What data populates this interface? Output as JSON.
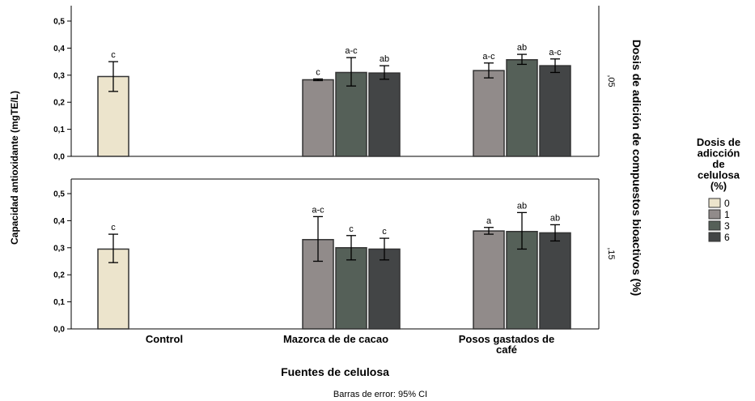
{
  "chart_data": {
    "type": "bar",
    "ylabel": "Capacidad antioxidante (mgTE/L)",
    "xlabel": "Fuentes de celulosa",
    "right_label": "Dosis de adición de compuestos bioactivos (%)",
    "footnote": "Barras de error: 95% CI",
    "categories": [
      "Control",
      "Mazorca de  de cacao",
      "Posos gastados de café"
    ],
    "yticks": [
      "0,0",
      "0,1",
      "0,2",
      "0,3",
      "0,4",
      "0,5"
    ],
    "ylim": [
      0,
      0.55
    ],
    "legend": {
      "title_lines": [
        "Dosis de",
        "adicción",
        "de",
        "celulosa",
        "(%)"
      ],
      "items": [
        {
          "label": "0",
          "color": "#ece4cc"
        },
        {
          "label": "1",
          "color": "#918b8a"
        },
        {
          "label": "3",
          "color": "#556058"
        },
        {
          "label": "6",
          "color": "#434546"
        }
      ]
    },
    "panels": [
      {
        "label": ",05",
        "groups": [
          {
            "category": "Control",
            "bars": [
              {
                "dose": "0",
                "value": 0.295,
                "low": 0.24,
                "high": 0.35,
                "letter": "c"
              }
            ]
          },
          {
            "category": "Mazorca de  de cacao",
            "bars": [
              {
                "dose": "1",
                "value": 0.283,
                "low": 0.28,
                "high": 0.286,
                "letter": "c"
              },
              {
                "dose": "3",
                "value": 0.31,
                "low": 0.26,
                "high": 0.365,
                "letter": "a-c"
              },
              {
                "dose": "6",
                "value": 0.308,
                "low": 0.285,
                "high": 0.335,
                "letter": "ab"
              }
            ]
          },
          {
            "category": "Posos gastados de café",
            "bars": [
              {
                "dose": "1",
                "value": 0.317,
                "low": 0.29,
                "high": 0.345,
                "letter": "a-c"
              },
              {
                "dose": "3",
                "value": 0.357,
                "low": 0.34,
                "high": 0.377,
                "letter": "ab"
              },
              {
                "dose": "6",
                "value": 0.335,
                "low": 0.31,
                "high": 0.36,
                "letter": "a-c"
              }
            ]
          }
        ]
      },
      {
        "label": ",15",
        "groups": [
          {
            "category": "Control",
            "bars": [
              {
                "dose": "0",
                "value": 0.295,
                "low": 0.245,
                "high": 0.35,
                "letter": "c"
              }
            ]
          },
          {
            "category": "Mazorca de  de cacao",
            "bars": [
              {
                "dose": "1",
                "value": 0.33,
                "low": 0.25,
                "high": 0.415,
                "letter": "a-c"
              },
              {
                "dose": "3",
                "value": 0.3,
                "low": 0.255,
                "high": 0.345,
                "letter": "c"
              },
              {
                "dose": "6",
                "value": 0.295,
                "low": 0.255,
                "high": 0.335,
                "letter": "c"
              }
            ]
          },
          {
            "category": "Posos gastados de café",
            "bars": [
              {
                "dose": "1",
                "value": 0.362,
                "low": 0.35,
                "high": 0.375,
                "letter": "a"
              },
              {
                "dose": "3",
                "value": 0.36,
                "low": 0.295,
                "high": 0.43,
                "letter": "ab"
              },
              {
                "dose": "6",
                "value": 0.355,
                "low": 0.325,
                "high": 0.385,
                "letter": "ab"
              }
            ]
          }
        ]
      }
    ]
  }
}
